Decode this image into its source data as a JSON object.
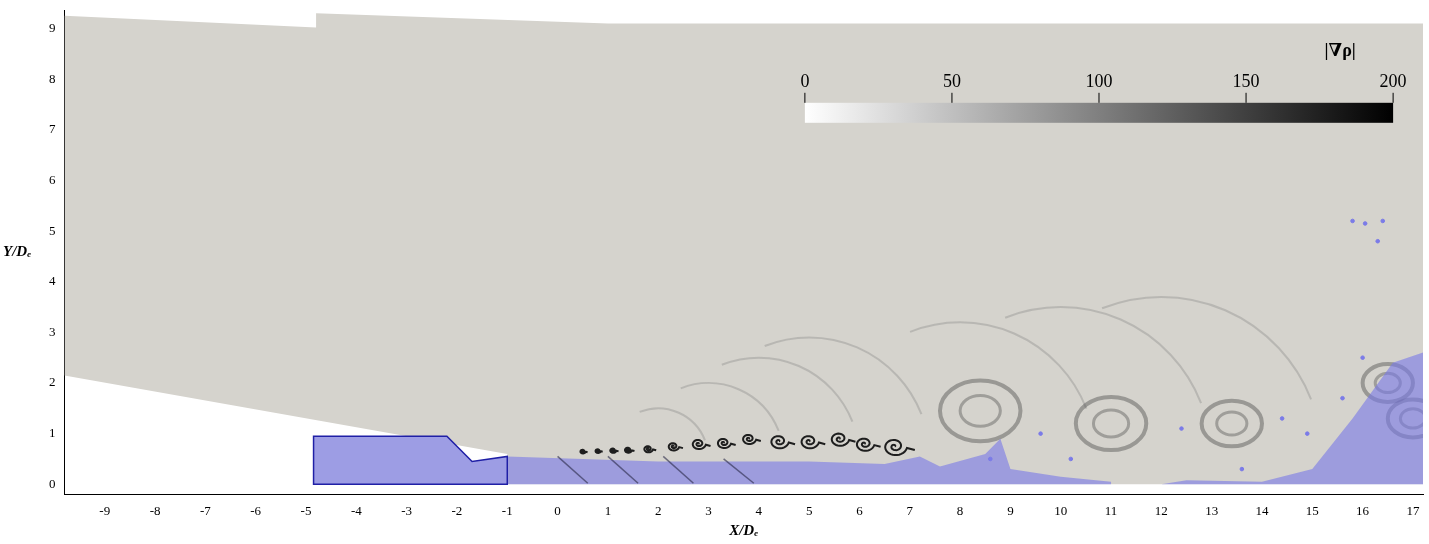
{
  "chart_data": {
    "type": "field",
    "x_label": "X/Dₑ",
    "y_label": "Y/Dₑ",
    "xlim": [
      -9.8,
      17.2
    ],
    "xticks": [
      -9,
      -8,
      -7,
      -6,
      -5,
      -4,
      -3,
      -2,
      -1,
      0,
      1,
      2,
      3,
      4,
      5,
      6,
      7,
      8,
      9,
      10,
      11,
      12,
      13,
      14,
      15,
      16,
      17
    ],
    "ylim": [
      -0.2,
      9.35
    ],
    "yticks": [
      0,
      1,
      2,
      3,
      4,
      5,
      6,
      7,
      8,
      9
    ],
    "grid": false,
    "colorbar": {
      "title": "|∇ρ|",
      "range": [
        0,
        200
      ],
      "ticks": [
        0,
        50,
        100,
        150,
        200
      ]
    },
    "domain": [
      [
        -9.8,
        2.15
      ],
      [
        -9.8,
        9.25
      ],
      [
        -4.8,
        9.02
      ],
      [
        -4.8,
        9.3
      ],
      [
        1,
        9.1
      ],
      [
        17.2,
        9.1
      ],
      [
        17.2,
        0
      ],
      [
        -1,
        0
      ],
      [
        -1,
        0.6
      ]
    ],
    "nozzle": [
      [
        -4.85,
        0
      ],
      [
        -4.85,
        0.95
      ],
      [
        -2.2,
        0.95
      ],
      [
        -1.7,
        0.45
      ],
      [
        -1,
        0.55
      ],
      [
        -1,
        0
      ]
    ],
    "plumes": [
      [
        [
          -1,
          0
        ],
        [
          -1,
          0.55
        ],
        [
          2,
          0.45
        ],
        [
          5,
          0.45
        ],
        [
          6.5,
          0.4
        ],
        [
          7.2,
          0.55
        ],
        [
          7.6,
          0.35
        ],
        [
          8.5,
          0.6
        ],
        [
          8.8,
          0.9
        ],
        [
          9,
          0.3
        ],
        [
          10,
          0.15
        ],
        [
          11,
          0.05
        ],
        [
          11,
          0
        ]
      ],
      [
        [
          12,
          0
        ],
        [
          12.5,
          0.08
        ],
        [
          14,
          0.05
        ],
        [
          15,
          0.3
        ],
        [
          15.8,
          1.3
        ],
        [
          16.6,
          2.4
        ],
        [
          17.2,
          2.6
        ],
        [
          17.2,
          0
        ]
      ]
    ],
    "shocks": [
      [
        0,
        0.55,
        0.6,
        0.02
      ],
      [
        1,
        0.55,
        1.6,
        0.02
      ],
      [
        2.1,
        0.55,
        2.7,
        0.02
      ],
      [
        3.3,
        0.5,
        3.9,
        0.02
      ]
    ],
    "vortices": [
      [
        0.5,
        0.65,
        0.06
      ],
      [
        0.8,
        0.66,
        0.06
      ],
      [
        1.1,
        0.67,
        0.07
      ],
      [
        1.4,
        0.68,
        0.08
      ],
      [
        1.8,
        0.7,
        0.1
      ],
      [
        2.3,
        0.75,
        0.12
      ],
      [
        2.8,
        0.8,
        0.15
      ],
      [
        3.3,
        0.82,
        0.15
      ],
      [
        3.8,
        0.9,
        0.15
      ],
      [
        4.4,
        0.85,
        0.2
      ],
      [
        5,
        0.85,
        0.2
      ],
      [
        5.6,
        0.9,
        0.2
      ],
      [
        6.1,
        0.8,
        0.2
      ],
      [
        6.7,
        0.75,
        0.25
      ]
    ],
    "rings": [
      [
        8.4,
        1.45,
        0.8
      ],
      [
        11,
        1.2,
        0.7
      ],
      [
        13.4,
        1.2,
        0.6
      ],
      [
        16.5,
        2,
        0.5
      ],
      [
        17,
        1.3,
        0.5
      ]
    ],
    "waves": [
      [
        2,
        0.5,
        1
      ],
      [
        3,
        0.5,
        1.5
      ],
      [
        4,
        0.5,
        2
      ],
      [
        5,
        0.5,
        2.4
      ],
      [
        8,
        0.5,
        2.7
      ],
      [
        10,
        0.5,
        3
      ],
      [
        12,
        0.5,
        3.2
      ]
    ],
    "particles": {
      "color": "#7b7be8",
      "x": [
        15.8,
        16.05,
        16.3,
        16.4,
        14.4,
        14.9,
        12.4,
        16,
        15.6,
        13.6,
        10.2,
        9.6,
        8.6
      ],
      "y": [
        5.2,
        5.15,
        4.8,
        5.2,
        1.3,
        1,
        1.1,
        2.5,
        1.7,
        0.3,
        0.5,
        1,
        0.5
      ]
    }
  }
}
